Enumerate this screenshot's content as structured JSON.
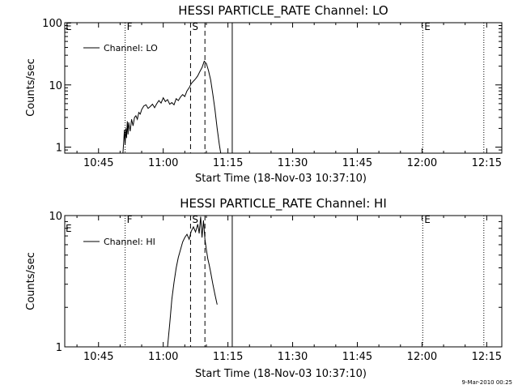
{
  "footer_timestamp": "9-Mar-2010 00:25",
  "chart_data": [
    {
      "type": "line",
      "title": "HESSI PARTICLE_RATE Channel: LO",
      "xlabel": "Start Time (18-Nov-03 10:37:10)",
      "ylabel": "Counts/sec",
      "yscale": "log",
      "xlim": [
        "10:37:10",
        "12:18:30"
      ],
      "ylim": [
        0.8,
        100
      ],
      "x_ticks": [
        "10:45",
        "11:00",
        "11:15",
        "11:30",
        "11:45",
        "12:00",
        "12:15"
      ],
      "y_ticks": [
        1,
        10,
        100
      ],
      "legend": {
        "label": "Channel: LO",
        "placement": "top-left"
      },
      "markers": [
        {
          "time": "10:51:10",
          "label": "F",
          "style": "dotted"
        },
        {
          "time": "11:06:20",
          "label": "S",
          "style": "dashed"
        },
        {
          "time": "11:09:40",
          "label": "",
          "style": "dashed"
        },
        {
          "time": "11:16:00",
          "label": "",
          "style": "solid"
        },
        {
          "time": "12:00:10",
          "label": "E",
          "style": "dotted"
        },
        {
          "time": "12:14:20",
          "label": "",
          "style": "dotted"
        }
      ],
      "edge_label": "E",
      "series": [
        {
          "times": [
            "10:50:40",
            "10:50:50",
            "10:51:00",
            "10:51:10",
            "10:51:20",
            "10:51:30",
            "10:51:40",
            "10:51:50",
            "10:52:00",
            "10:52:20",
            "10:52:40",
            "10:53:00",
            "10:53:20",
            "10:53:40",
            "10:54:00",
            "10:54:20",
            "10:54:40",
            "10:55:00",
            "10:55:30",
            "10:56:00",
            "10:56:30",
            "10:57:00",
            "10:57:30",
            "10:58:00",
            "10:58:30",
            "10:59:00",
            "10:59:30",
            "11:00:00",
            "11:00:30",
            "11:01:00",
            "11:01:30",
            "11:02:00",
            "11:02:30",
            "11:03:00",
            "11:03:30",
            "11:04:00",
            "11:04:30",
            "11:05:00",
            "11:05:30",
            "11:06:00",
            "11:06:30",
            "11:07:00",
            "11:07:30",
            "11:08:00",
            "11:08:30",
            "11:09:00",
            "11:09:30",
            "11:10:00",
            "11:10:30",
            "11:11:00",
            "11:11:30",
            "11:12:00",
            "11:12:30",
            "11:13:00",
            "11:13:20"
          ],
          "values": [
            0.8,
            1.2,
            1.9,
            1.1,
            2.0,
            1.4,
            2.6,
            1.6,
            2.5,
            1.8,
            2.8,
            2.2,
            3.0,
            3.2,
            2.8,
            3.6,
            3.4,
            4.0,
            4.6,
            4.8,
            4.2,
            4.5,
            4.9,
            4.3,
            5.0,
            5.6,
            5.1,
            6.2,
            5.4,
            5.8,
            4.9,
            5.2,
            4.8,
            6.0,
            5.6,
            6.4,
            7.0,
            6.5,
            8.0,
            9.0,
            10.5,
            11.5,
            12.5,
            14.0,
            16.5,
            19.0,
            24.0,
            22.0,
            17.0,
            12.0,
            7.0,
            4.0,
            2.0,
            1.1,
            0.8
          ]
        }
      ]
    },
    {
      "type": "line",
      "title": "HESSI PARTICLE_RATE Channel: HI",
      "xlabel": "Start Time (18-Nov-03 10:37:10)",
      "ylabel": "Counts/sec",
      "yscale": "log",
      "xlim": [
        "10:37:10",
        "12:18:30"
      ],
      "ylim": [
        1,
        10
      ],
      "x_ticks": [
        "10:45",
        "11:00",
        "11:15",
        "11:30",
        "11:45",
        "12:00",
        "12:15"
      ],
      "y_ticks": [
        1,
        10
      ],
      "legend": {
        "label": "Channel: HI",
        "placement": "top-left"
      },
      "markers": [
        {
          "time": "10:51:10",
          "label": "F",
          "style": "dotted"
        },
        {
          "time": "11:06:20",
          "label": "S",
          "style": "dashed"
        },
        {
          "time": "11:09:40",
          "label": "",
          "style": "dashed"
        },
        {
          "time": "11:16:00",
          "label": "",
          "style": "solid"
        },
        {
          "time": "12:00:10",
          "label": "E",
          "style": "dotted"
        },
        {
          "time": "12:14:20",
          "label": "",
          "style": "dotted"
        }
      ],
      "edge_label": "E",
      "series": [
        {
          "times": [
            "11:01:00",
            "11:01:30",
            "11:02:00",
            "11:02:30",
            "11:03:00",
            "11:03:30",
            "11:04:00",
            "11:04:30",
            "11:05:00",
            "11:05:30",
            "11:06:00",
            "11:06:30",
            "11:07:00",
            "11:07:30",
            "11:08:00",
            "11:08:20",
            "11:08:40",
            "11:09:00",
            "11:09:20",
            "11:09:40",
            "11:10:00",
            "11:10:20",
            "11:10:40",
            "11:11:00",
            "11:11:30",
            "11:12:00",
            "11:12:30"
          ],
          "values": [
            1.0,
            1.5,
            2.3,
            3.1,
            4.0,
            4.8,
            5.5,
            6.3,
            6.8,
            7.2,
            6.6,
            7.6,
            8.2,
            7.5,
            8.6,
            7.3,
            9.8,
            6.8,
            9.2,
            6.6,
            5.5,
            4.7,
            4.2,
            3.7,
            3.0,
            2.5,
            2.1
          ]
        }
      ]
    }
  ]
}
